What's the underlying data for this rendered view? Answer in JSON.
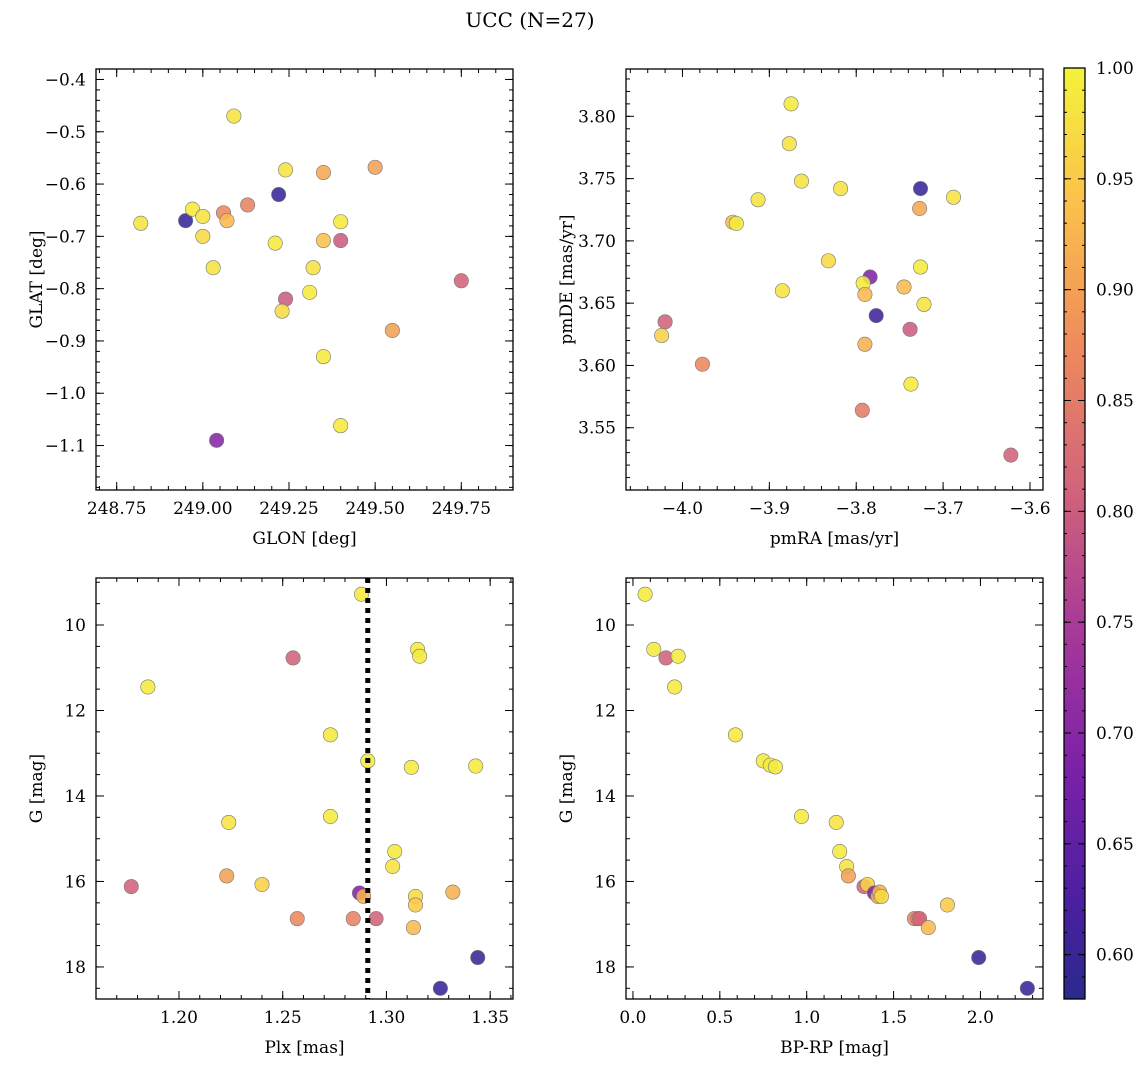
{
  "title": "UCC (N=27)",
  "colorbar": {
    "min": 0.58,
    "max": 1.0,
    "ticks": [
      0.6,
      0.65,
      0.7,
      0.75,
      0.8,
      0.85,
      0.9,
      0.95,
      1.0
    ],
    "ticklabels": [
      "0.60",
      "0.65",
      "0.70",
      "0.75",
      "0.80",
      "0.85",
      "0.90",
      "0.95",
      "1.00"
    ],
    "colormap": "plasma"
  },
  "chart_data": [
    {
      "type": "scatter",
      "id": "glon-glat",
      "xlabel": "GLON [deg]",
      "ylabel": "GLAT [deg]",
      "xlim": [
        248.69,
        249.9
      ],
      "ylim": [
        -1.185,
        -0.38
      ],
      "yinvert": false,
      "xticks": [
        248.75,
        249.0,
        249.25,
        249.5,
        249.75
      ],
      "xticklabels": [
        "248.75",
        "249.00",
        "249.25",
        "249.50",
        "249.75"
      ],
      "xminor": 0.05,
      "yticks": [
        -1.1,
        -1.0,
        -0.9,
        -0.8,
        -0.7,
        -0.6,
        -0.5,
        -0.4
      ],
      "yticklabels": [
        "−1.1",
        "−1.0",
        "−0.9",
        "−0.8",
        "−0.7",
        "−0.6",
        "−0.5",
        "−0.4"
      ],
      "yminor": 0.02,
      "points": [
        {
          "x": 249.09,
          "y": -0.47,
          "c": 0.98
        },
        {
          "x": 248.82,
          "y": -0.675,
          "c": 0.98
        },
        {
          "x": 248.95,
          "y": -0.67,
          "c": 0.6
        },
        {
          "x": 248.97,
          "y": -0.648,
          "c": 0.99
        },
        {
          "x": 249.0,
          "y": -0.662,
          "c": 0.98
        },
        {
          "x": 249.0,
          "y": -0.7,
          "c": 0.97
        },
        {
          "x": 249.03,
          "y": -0.76,
          "c": 0.98
        },
        {
          "x": 249.06,
          "y": -0.655,
          "c": 0.87
        },
        {
          "x": 249.07,
          "y": -0.67,
          "c": 0.93
        },
        {
          "x": 249.13,
          "y": -0.64,
          "c": 0.86
        },
        {
          "x": 249.04,
          "y": -1.09,
          "c": 0.7
        },
        {
          "x": 249.21,
          "y": -0.713,
          "c": 0.99
        },
        {
          "x": 249.22,
          "y": -0.62,
          "c": 0.6
        },
        {
          "x": 249.24,
          "y": -0.573,
          "c": 0.98
        },
        {
          "x": 249.24,
          "y": -0.82,
          "c": 0.8
        },
        {
          "x": 249.23,
          "y": -0.843,
          "c": 0.97
        },
        {
          "x": 249.31,
          "y": -0.807,
          "c": 0.99
        },
        {
          "x": 249.32,
          "y": -0.76,
          "c": 0.98
        },
        {
          "x": 249.35,
          "y": -0.578,
          "c": 0.91
        },
        {
          "x": 249.35,
          "y": -0.708,
          "c": 0.94
        },
        {
          "x": 249.35,
          "y": -0.93,
          "c": 0.99
        },
        {
          "x": 249.4,
          "y": -0.672,
          "c": 0.99
        },
        {
          "x": 249.4,
          "y": -0.708,
          "c": 0.8
        },
        {
          "x": 249.4,
          "y": -1.062,
          "c": 0.99
        },
        {
          "x": 249.5,
          "y": -0.568,
          "c": 0.9
        },
        {
          "x": 249.55,
          "y": -0.88,
          "c": 0.9
        },
        {
          "x": 249.75,
          "y": -0.785,
          "c": 0.81
        }
      ]
    },
    {
      "type": "scatter",
      "id": "pmra-pmde",
      "xlabel": "pmRA [mas/yr]",
      "ylabel": "pmDE [mas/yr]",
      "xlim": [
        -4.065,
        -3.585
      ],
      "ylim": [
        3.5,
        3.838
      ],
      "yinvert": false,
      "xticks": [
        -4.0,
        -3.9,
        -3.8,
        -3.7,
        -3.6
      ],
      "xticklabels": [
        "−4.0",
        "−3.9",
        "−3.8",
        "−3.7",
        "−3.6"
      ],
      "xminor": 0.02,
      "yticks": [
        3.55,
        3.6,
        3.65,
        3.7,
        3.75,
        3.8
      ],
      "yticklabels": [
        "3.55",
        "3.60",
        "3.65",
        "3.70",
        "3.75",
        "3.80"
      ],
      "yminor": 0.01,
      "points": [
        {
          "x": -3.875,
          "y": 3.81,
          "c": 0.99
        },
        {
          "x": -3.877,
          "y": 3.778,
          "c": 0.98
        },
        {
          "x": -3.863,
          "y": 3.748,
          "c": 0.98
        },
        {
          "x": -3.818,
          "y": 3.742,
          "c": 0.98
        },
        {
          "x": -3.913,
          "y": 3.733,
          "c": 0.98
        },
        {
          "x": -3.942,
          "y": 3.715,
          "c": 0.93
        },
        {
          "x": -3.938,
          "y": 3.714,
          "c": 0.99
        },
        {
          "x": -3.726,
          "y": 3.742,
          "c": 0.6
        },
        {
          "x": -3.727,
          "y": 3.726,
          "c": 0.91
        },
        {
          "x": -3.688,
          "y": 3.735,
          "c": 0.98
        },
        {
          "x": -3.832,
          "y": 3.684,
          "c": 0.97
        },
        {
          "x": -3.784,
          "y": 3.671,
          "c": 0.69
        },
        {
          "x": -3.792,
          "y": 3.666,
          "c": 0.99
        },
        {
          "x": -3.726,
          "y": 3.679,
          "c": 0.99
        },
        {
          "x": -3.745,
          "y": 3.663,
          "c": 0.93
        },
        {
          "x": -3.885,
          "y": 3.66,
          "c": 0.98
        },
        {
          "x": -3.79,
          "y": 3.657,
          "c": 0.93
        },
        {
          "x": -3.722,
          "y": 3.649,
          "c": 0.98
        },
        {
          "x": -3.777,
          "y": 3.64,
          "c": 0.61
        },
        {
          "x": -4.02,
          "y": 3.635,
          "c": 0.81
        },
        {
          "x": -3.738,
          "y": 3.629,
          "c": 0.8
        },
        {
          "x": -4.024,
          "y": 3.624,
          "c": 0.96
        },
        {
          "x": -3.79,
          "y": 3.617,
          "c": 0.92
        },
        {
          "x": -3.977,
          "y": 3.601,
          "c": 0.87
        },
        {
          "x": -3.737,
          "y": 3.585,
          "c": 0.99
        },
        {
          "x": -3.793,
          "y": 3.564,
          "c": 0.85
        },
        {
          "x": -3.622,
          "y": 3.528,
          "c": 0.81
        }
      ]
    },
    {
      "type": "scatter",
      "id": "plx-g",
      "xlabel": "Plx [mas]",
      "ylabel": "G [mag]",
      "xlim": [
        1.16,
        1.361
      ],
      "ylim": [
        8.9,
        18.75
      ],
      "yinvert": true,
      "xticks": [
        1.2,
        1.25,
        1.3,
        1.35
      ],
      "xticklabels": [
        "1.20",
        "1.25",
        "1.30",
        "1.35"
      ],
      "xminor": 0.01,
      "yticks": [
        10,
        12,
        14,
        16,
        18
      ],
      "yticklabels": [
        "10",
        "12",
        "14",
        "16",
        "18"
      ],
      "yminor": 0.5,
      "vline": 1.291,
      "points": [
        {
          "x": 1.288,
          "y": 9.28,
          "c": 0.99
        },
        {
          "x": 1.255,
          "y": 10.77,
          "c": 0.81
        },
        {
          "x": 1.315,
          "y": 10.57,
          "c": 0.99
        },
        {
          "x": 1.316,
          "y": 10.73,
          "c": 0.99
        },
        {
          "x": 1.185,
          "y": 11.45,
          "c": 0.99
        },
        {
          "x": 1.273,
          "y": 12.57,
          "c": 0.99
        },
        {
          "x": 1.291,
          "y": 13.18,
          "c": 0.99
        },
        {
          "x": 1.312,
          "y": 13.33,
          "c": 0.99
        },
        {
          "x": 1.343,
          "y": 13.3,
          "c": 0.99
        },
        {
          "x": 1.273,
          "y": 14.48,
          "c": 0.99
        },
        {
          "x": 1.224,
          "y": 14.62,
          "c": 0.98
        },
        {
          "x": 1.304,
          "y": 15.3,
          "c": 0.99
        },
        {
          "x": 1.303,
          "y": 15.65,
          "c": 0.98
        },
        {
          "x": 1.223,
          "y": 15.87,
          "c": 0.9
        },
        {
          "x": 1.177,
          "y": 16.12,
          "c": 0.81
        },
        {
          "x": 1.24,
          "y": 16.07,
          "c": 0.96
        },
        {
          "x": 1.287,
          "y": 16.27,
          "c": 0.69
        },
        {
          "x": 1.289,
          "y": 16.35,
          "c": 0.92
        },
        {
          "x": 1.332,
          "y": 16.25,
          "c": 0.92
        },
        {
          "x": 1.314,
          "y": 16.35,
          "c": 0.97
        },
        {
          "x": 1.314,
          "y": 16.55,
          "c": 0.95
        },
        {
          "x": 1.257,
          "y": 16.87,
          "c": 0.87
        },
        {
          "x": 1.284,
          "y": 16.87,
          "c": 0.86
        },
        {
          "x": 1.295,
          "y": 16.87,
          "c": 0.81
        },
        {
          "x": 1.313,
          "y": 17.08,
          "c": 0.93
        },
        {
          "x": 1.344,
          "y": 17.78,
          "c": 0.6
        },
        {
          "x": 1.326,
          "y": 18.5,
          "c": 0.6
        }
      ]
    },
    {
      "type": "scatter",
      "id": "bprp-g",
      "xlabel": "BP-RP [mag]",
      "ylabel": "G [mag]",
      "xlim": [
        -0.04,
        2.36
      ],
      "ylim": [
        8.9,
        18.75
      ],
      "yinvert": true,
      "xticks": [
        0.0,
        0.5,
        1.0,
        1.5,
        2.0
      ],
      "xticklabels": [
        "0.0",
        "0.5",
        "1.0",
        "1.5",
        "2.0"
      ],
      "xminor": 0.1,
      "yticks": [
        10,
        12,
        14,
        16,
        18
      ],
      "yticklabels": [
        "10",
        "12",
        "14",
        "16",
        "18"
      ],
      "yminor": 0.5,
      "points": [
        {
          "x": 0.07,
          "y": 9.28,
          "c": 0.99
        },
        {
          "x": 0.12,
          "y": 10.57,
          "c": 0.99
        },
        {
          "x": 0.19,
          "y": 10.77,
          "c": 0.81
        },
        {
          "x": 0.26,
          "y": 10.73,
          "c": 0.99
        },
        {
          "x": 0.24,
          "y": 11.45,
          "c": 0.99
        },
        {
          "x": 0.59,
          "y": 12.57,
          "c": 0.99
        },
        {
          "x": 0.75,
          "y": 13.18,
          "c": 0.99
        },
        {
          "x": 0.79,
          "y": 13.28,
          "c": 0.99
        },
        {
          "x": 0.82,
          "y": 13.32,
          "c": 0.99
        },
        {
          "x": 0.97,
          "y": 14.48,
          "c": 0.99
        },
        {
          "x": 1.17,
          "y": 14.62,
          "c": 0.98
        },
        {
          "x": 1.19,
          "y": 15.3,
          "c": 0.99
        },
        {
          "x": 1.23,
          "y": 15.65,
          "c": 0.98
        },
        {
          "x": 1.24,
          "y": 15.87,
          "c": 0.9
        },
        {
          "x": 1.33,
          "y": 16.12,
          "c": 0.81
        },
        {
          "x": 1.35,
          "y": 16.07,
          "c": 0.96
        },
        {
          "x": 1.39,
          "y": 16.27,
          "c": 0.69
        },
        {
          "x": 1.41,
          "y": 16.35,
          "c": 0.92
        },
        {
          "x": 1.42,
          "y": 16.25,
          "c": 0.92
        },
        {
          "x": 1.43,
          "y": 16.35,
          "c": 0.97
        },
        {
          "x": 1.62,
          "y": 16.87,
          "c": 0.87
        },
        {
          "x": 1.64,
          "y": 16.87,
          "c": 0.86
        },
        {
          "x": 1.65,
          "y": 16.87,
          "c": 0.81
        },
        {
          "x": 1.7,
          "y": 17.08,
          "c": 0.93
        },
        {
          "x": 1.81,
          "y": 16.55,
          "c": 0.95
        },
        {
          "x": 1.99,
          "y": 17.78,
          "c": 0.6
        },
        {
          "x": 2.27,
          "y": 18.5,
          "c": 0.6
        }
      ]
    }
  ]
}
